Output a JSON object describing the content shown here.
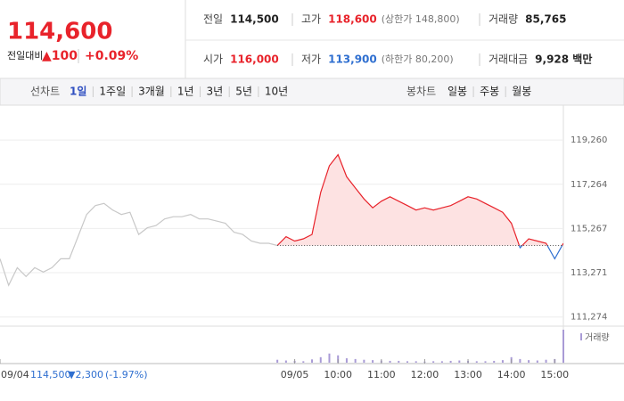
{
  "header": {
    "price": "114,600",
    "change_label": "전일대비",
    "change": "▲100",
    "change_pct": "+0.09%",
    "stats": [
      {
        "label": "전일",
        "value": "114,500"
      },
      {
        "label": "고가",
        "value": "118,600",
        "note": "(상한가 148,800)"
      },
      {
        "label": "거래량",
        "value": "85,765"
      },
      {
        "label": "시가",
        "value": "116,000"
      },
      {
        "label": "저가",
        "value": "113,900",
        "note": "(하한가 80,200)"
      },
      {
        "label": "거래대금",
        "value": "9,928 백만"
      }
    ]
  },
  "tabs": {
    "line_label": "선차트",
    "periods": [
      "1일",
      "1주일",
      "3개월",
      "1년",
      "3년",
      "5년",
      "10년"
    ],
    "active": 0,
    "candle_label": "봉차트",
    "candles": [
      "일봉",
      "주봉",
      "월봉"
    ]
  },
  "chart_data": {
    "type": "line",
    "ylim": [
      110900,
      119950
    ],
    "yticks": [
      {
        "value": 119260,
        "label": "119,260"
      },
      {
        "value": 117264,
        "label": "117,264"
      },
      {
        "value": 115267,
        "label": "115,267"
      },
      {
        "value": 113271,
        "label": "113,271"
      },
      {
        "value": 111274,
        "label": "111,274"
      }
    ],
    "xlim": [
      0,
      65
    ],
    "xticks": [
      {
        "value": 0,
        "label": "09/04"
      },
      {
        "value": 34,
        "label": "09/05"
      },
      {
        "value": 39,
        "label": "10:00"
      },
      {
        "value": 44,
        "label": "11:00"
      },
      {
        "value": 49,
        "label": "12:00"
      },
      {
        "value": 54,
        "label": "13:00"
      },
      {
        "value": 59,
        "label": "14:00"
      },
      {
        "value": 64,
        "label": "15:00"
      }
    ],
    "base": 114500,
    "grid": true,
    "series": [
      {
        "color": "#c8c8c8",
        "x": [
          0,
          1,
          2,
          3,
          4,
          5,
          6,
          7,
          8,
          9,
          10,
          11,
          12,
          13,
          14,
          15,
          16,
          17,
          18,
          19,
          20,
          21,
          22,
          23,
          24,
          25,
          26,
          27,
          28,
          29,
          30,
          31,
          32
        ],
        "values": [
          113900,
          112700,
          113500,
          113100,
          113500,
          113300,
          113500,
          113900,
          113900,
          114900,
          115900,
          116300,
          116400,
          116100,
          115900,
          116000,
          115000,
          115300,
          115400,
          115700,
          115800,
          115800,
          115900,
          115700,
          115700,
          115600,
          115500,
          115100,
          115000,
          114700,
          114600,
          114600,
          114500
        ]
      },
      {
        "color": "#e8232b",
        "below_color": "#2f6fd0",
        "fill": "#fde2e2",
        "x": [
          32,
          33,
          34,
          35,
          36,
          37,
          38,
          39,
          40,
          41,
          42,
          43,
          44,
          45,
          46,
          47,
          48,
          49,
          50,
          51,
          52,
          53,
          54,
          55,
          56,
          57,
          58,
          59,
          60,
          61,
          62,
          63,
          64,
          65
        ],
        "values": [
          114500,
          114900,
          114700,
          114800,
          115000,
          116900,
          118100,
          118600,
          117600,
          117100,
          116600,
          116200,
          116500,
          116700,
          116500,
          116300,
          116100,
          116200,
          116100,
          116200,
          116300,
          116500,
          116700,
          116600,
          116400,
          116200,
          116000,
          115500,
          114400,
          114800,
          114700,
          114600,
          113900,
          114600
        ]
      }
    ],
    "volume": {
      "label": "거래량",
      "color": "#a99bd6",
      "x": [
        32,
        33,
        34,
        35,
        36,
        37,
        38,
        39,
        40,
        41,
        42,
        43,
        44,
        45,
        46,
        47,
        48,
        49,
        50,
        51,
        52,
        53,
        54,
        55,
        56,
        57,
        58,
        59,
        60,
        61,
        62,
        63,
        64,
        65
      ],
      "values": [
        800,
        600,
        500,
        400,
        900,
        1500,
        2500,
        2000,
        1200,
        1000,
        800,
        700,
        600,
        500,
        500,
        400,
        400,
        300,
        400,
        400,
        500,
        600,
        500,
        400,
        400,
        500,
        700,
        1500,
        1000,
        700,
        600,
        800,
        1000,
        9000
      ]
    },
    "summary": {
      "price": "114,500",
      "change": "▼2,300",
      "change_pct": "(-1.97%)"
    }
  }
}
